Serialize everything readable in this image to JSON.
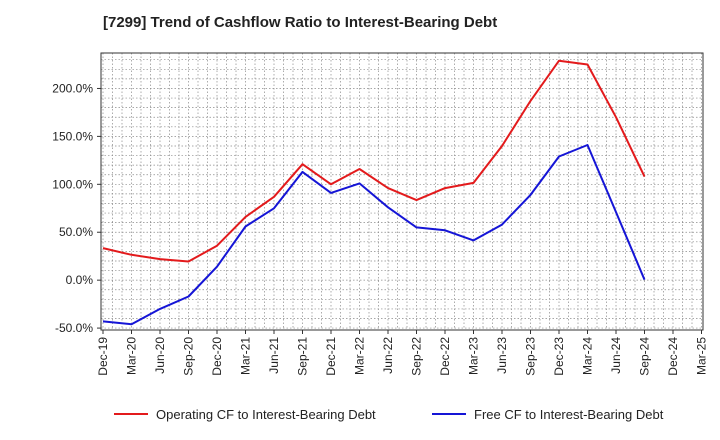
{
  "chart_data": {
    "type": "line",
    "title": "[7299]  Trend of Cashflow Ratio to Interest-Bearing Debt",
    "xlabel": "",
    "ylabel": "",
    "ylim": [
      -52,
      237
    ],
    "yticks": [
      {
        "value": -50,
        "label": "-50.0%"
      },
      {
        "value": 0,
        "label": "0.0%"
      },
      {
        "value": 50,
        "label": "50.0%"
      },
      {
        "value": 100,
        "label": "100.0%"
      },
      {
        "value": 150,
        "label": "150.0%"
      },
      {
        "value": 200,
        "label": "200.0%"
      }
    ],
    "x": [
      "Dec-19",
      "Mar-20",
      "Jun-20",
      "Sep-20",
      "Dec-20",
      "Mar-21",
      "Jun-21",
      "Sep-21",
      "Dec-21",
      "Mar-22",
      "Jun-22",
      "Sep-22",
      "Dec-22",
      "Mar-23",
      "Jun-23",
      "Sep-23",
      "Dec-23",
      "Mar-24",
      "Jun-24",
      "Sep-24",
      "Dec-24",
      "Mar-25"
    ],
    "grid": true,
    "legend_position": "bottom",
    "series": [
      {
        "name": "Operating CF to Interest-Bearing Debt",
        "color": "#e31a1c",
        "values": [
          33.5,
          26.5,
          22,
          19.5,
          36,
          66,
          87,
          121,
          100,
          116,
          96,
          83.5,
          96,
          101.5,
          140,
          187,
          229,
          225,
          170,
          108,
          null,
          null
        ]
      },
      {
        "name": "Free CF to Interest-Bearing Debt",
        "color": "#1515d6",
        "values": [
          -43,
          -46,
          -30,
          -17,
          14,
          56,
          75,
          113,
          91,
          101,
          76,
          55,
          52,
          41.5,
          58,
          89,
          129,
          141,
          71,
          0.5,
          null,
          null
        ]
      }
    ]
  }
}
